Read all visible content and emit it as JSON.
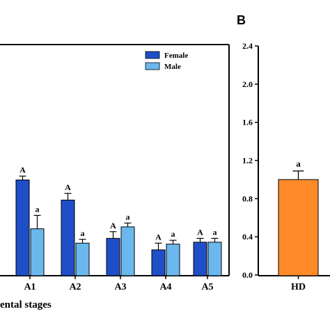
{
  "chart_data": [
    {
      "type": "bar",
      "panel": "",
      "categories": [
        "A1",
        "A2",
        "A3",
        "A4",
        "A5"
      ],
      "xlabel": "ental stages",
      "ylabel": "",
      "ylim": [
        0,
        2.4
      ],
      "legend_position": "top-right",
      "series": [
        {
          "name": "Female",
          "color": "#1f4fc8",
          "values": [
            1.0,
            0.79,
            0.39,
            0.27,
            0.35
          ],
          "errors": [
            0.04,
            0.07,
            0.07,
            0.07,
            0.04
          ],
          "letters": [
            "A",
            "A",
            "A",
            "A",
            "A"
          ]
        },
        {
          "name": "Male",
          "color": "#6bb8ee",
          "values": [
            0.49,
            0.34,
            0.51,
            0.33,
            0.35
          ],
          "errors": [
            0.14,
            0.04,
            0.04,
            0.04,
            0.04
          ],
          "letters": [
            "a",
            "a",
            "a",
            "a",
            "a"
          ]
        }
      ]
    },
    {
      "type": "bar",
      "panel": "B",
      "categories": [
        "HD"
      ],
      "ylim": [
        0,
        2.4
      ],
      "yticks": [
        "0.0",
        "0.4",
        "0.8",
        "1.2",
        "1.6",
        "2.0",
        "2.4"
      ],
      "series": [
        {
          "name": "",
          "color": "#ff8a2a",
          "values": [
            1.0
          ],
          "errors": [
            0.09
          ],
          "letters": [
            "a"
          ]
        }
      ]
    }
  ]
}
